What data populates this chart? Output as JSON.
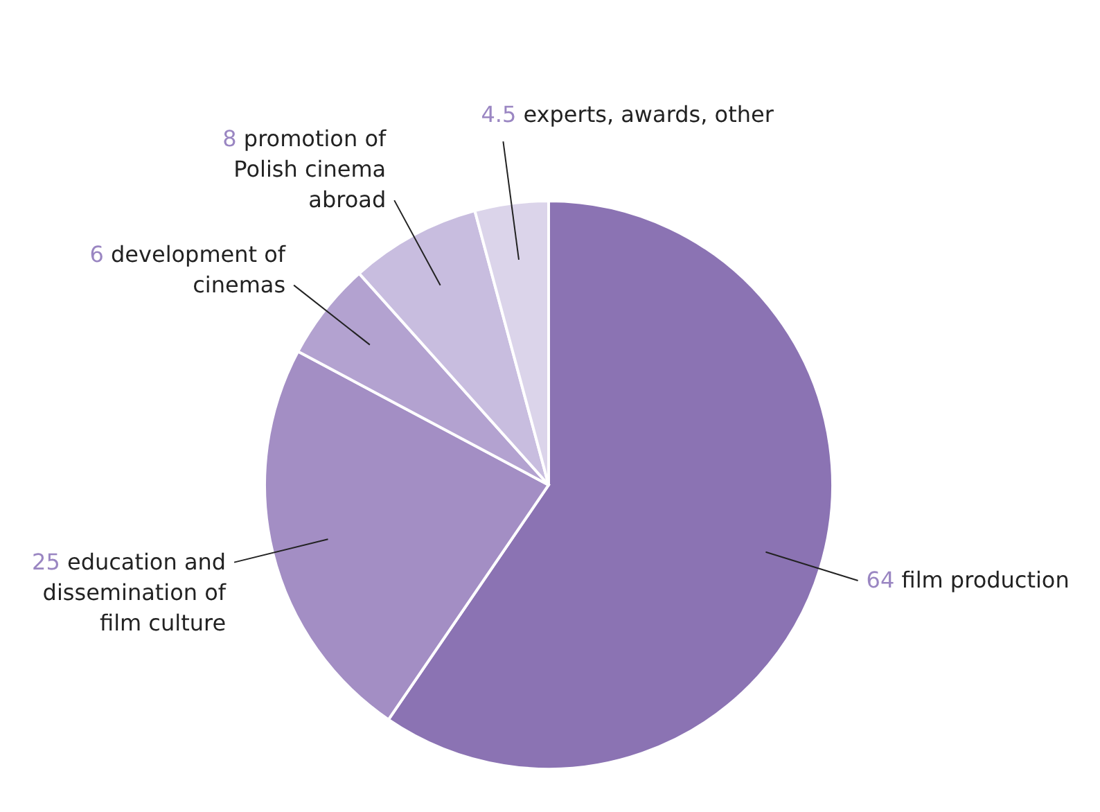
{
  "chart_data": {
    "type": "pie",
    "categories": [
      "film production",
      "education and dissemination of film culture",
      "development of cinemas",
      "promotion of Polish cinema abroad",
      "experts, awards, other"
    ],
    "values": [
      64,
      25,
      6,
      8,
      4.5
    ],
    "colors": [
      "#8b73b3",
      "#a38ec4",
      "#b3a2d0",
      "#c8bddf",
      "#dbd4ea"
    ],
    "data_labels": true
  }
}
